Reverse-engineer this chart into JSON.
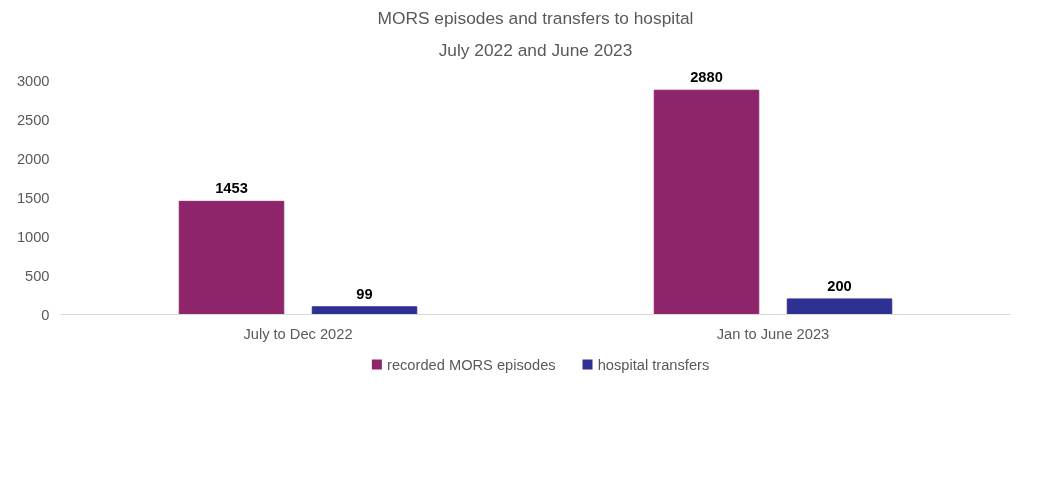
{
  "chart_data": {
    "type": "bar",
    "title": "MORS episodes and transfers to hospital",
    "subtitle": "July 2022 and June 2023",
    "categories": [
      "July to Dec 2022",
      "Jan to June 2023"
    ],
    "series": [
      {
        "name": "recorded MORS episodes",
        "color": "#8e2469",
        "values": [
          1453,
          2880
        ]
      },
      {
        "name": "hospital transfers",
        "color": "#2e3192",
        "values": [
          99,
          200
        ]
      }
    ],
    "ylim": [
      0,
      3000
    ],
    "yticks": [
      0,
      500,
      1000,
      1500,
      2000,
      2500,
      3000
    ],
    "grid": false,
    "legend": "bottom",
    "data_labels": true
  }
}
